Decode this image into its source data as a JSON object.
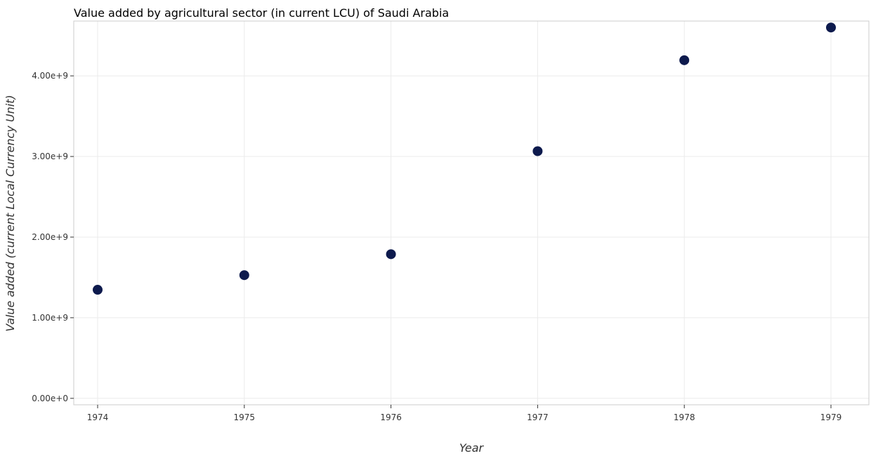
{
  "chart_data": {
    "type": "scatter",
    "title": "Value added by agricultural sector (in current LCU) of Saudi Arabia",
    "xlabel": "Year",
    "ylabel": "Value added (current Local Currency Unit)",
    "categories": [
      "1974",
      "1975",
      "1976",
      "1977",
      "1978",
      "1979"
    ],
    "series": [
      {
        "values": [
          1347000000,
          1528000000,
          1788000000,
          3066000000,
          4194000000,
          4600000000
        ]
      }
    ],
    "y_ticks": [
      0,
      1000000000,
      2000000000,
      3000000000,
      4000000000
    ],
    "y_tick_labels": [
      "0.00e+0",
      "1.00e+9",
      "2.00e+9",
      "3.00e+9",
      "4.00e+9"
    ],
    "ylim": [
      -80000000,
      4680000000
    ],
    "grid": true,
    "marker_color": "#0d1a4d"
  }
}
